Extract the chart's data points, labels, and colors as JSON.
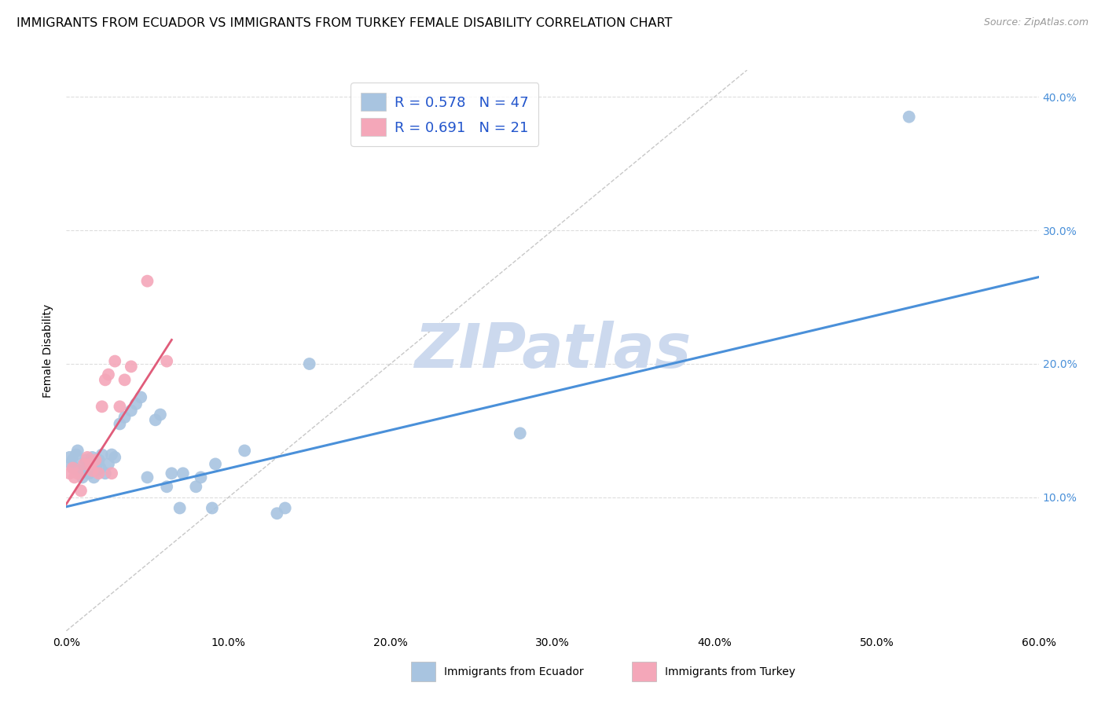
{
  "title": "IMMIGRANTS FROM ECUADOR VS IMMIGRANTS FROM TURKEY FEMALE DISABILITY CORRELATION CHART",
  "source": "Source: ZipAtlas.com",
  "ylabel": "Female Disability",
  "xlim": [
    0.0,
    0.6
  ],
  "ylim": [
    0.0,
    0.42
  ],
  "xticks": [
    0.0,
    0.1,
    0.2,
    0.3,
    0.4,
    0.5,
    0.6
  ],
  "yticks": [
    0.1,
    0.2,
    0.3,
    0.4
  ],
  "ytick_labels_right": [
    "10.0%",
    "20.0%",
    "30.0%",
    "40.0%"
  ],
  "xtick_labels": [
    "0.0%",
    "10.0%",
    "20.0%",
    "30.0%",
    "40.0%",
    "50.0%",
    "60.0%"
  ],
  "ecuador_color": "#a8c4e0",
  "turkey_color": "#f4a7b9",
  "ecuador_line_color": "#4a90d9",
  "turkey_line_color": "#e05c7a",
  "diagonal_color": "#c8c8c8",
  "watermark_color": "#ccd9ee",
  "R_ecuador": 0.578,
  "N_ecuador": 47,
  "R_turkey": 0.691,
  "N_turkey": 21,
  "ecuador_x": [
    0.002,
    0.003,
    0.004,
    0.005,
    0.006,
    0.007,
    0.008,
    0.009,
    0.01,
    0.011,
    0.012,
    0.013,
    0.014,
    0.015,
    0.016,
    0.017,
    0.018,
    0.019,
    0.02,
    0.021,
    0.022,
    0.024,
    0.026,
    0.028,
    0.03,
    0.033,
    0.036,
    0.04,
    0.043,
    0.046,
    0.05,
    0.055,
    0.058,
    0.062,
    0.065,
    0.07,
    0.072,
    0.08,
    0.083,
    0.09,
    0.092,
    0.11,
    0.13,
    0.135,
    0.15,
    0.28,
    0.52
  ],
  "ecuador_y": [
    0.13,
    0.125,
    0.128,
    0.122,
    0.132,
    0.135,
    0.12,
    0.118,
    0.115,
    0.125,
    0.128,
    0.122,
    0.118,
    0.125,
    0.13,
    0.115,
    0.12,
    0.125,
    0.128,
    0.122,
    0.132,
    0.118,
    0.125,
    0.132,
    0.13,
    0.155,
    0.16,
    0.165,
    0.17,
    0.175,
    0.115,
    0.158,
    0.162,
    0.108,
    0.118,
    0.092,
    0.118,
    0.108,
    0.115,
    0.092,
    0.125,
    0.135,
    0.088,
    0.092,
    0.2,
    0.148,
    0.385
  ],
  "turkey_x": [
    0.002,
    0.004,
    0.005,
    0.007,
    0.009,
    0.011,
    0.013,
    0.015,
    0.016,
    0.018,
    0.02,
    0.022,
    0.024,
    0.026,
    0.028,
    0.03,
    0.033,
    0.036,
    0.04,
    0.05,
    0.062
  ],
  "turkey_y": [
    0.118,
    0.122,
    0.115,
    0.118,
    0.105,
    0.125,
    0.13,
    0.125,
    0.12,
    0.128,
    0.118,
    0.168,
    0.188,
    0.192,
    0.118,
    0.202,
    0.168,
    0.188,
    0.198,
    0.262,
    0.202
  ],
  "ecuador_trend_x": [
    0.0,
    0.6
  ],
  "ecuador_trend_y": [
    0.093,
    0.265
  ],
  "turkey_trend_x": [
    0.0,
    0.065
  ],
  "turkey_trend_y": [
    0.095,
    0.218
  ],
  "legend_text_color": "#2255cc",
  "title_fontsize": 11.5,
  "axis_label_fontsize": 10,
  "tick_fontsize": 10
}
